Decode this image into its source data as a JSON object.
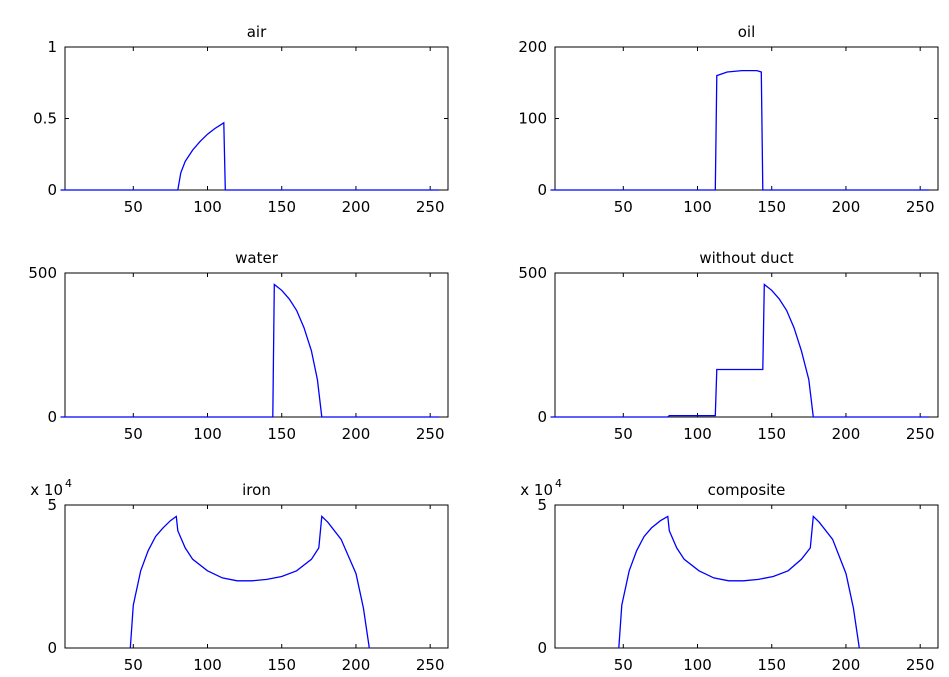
{
  "chart_data": [
    {
      "type": "line",
      "title": "air",
      "color": "#0000ff",
      "x": [
        1,
        80,
        82,
        85,
        90,
        95,
        100,
        105,
        111,
        112,
        256
      ],
      "values": [
        0,
        0,
        0.12,
        0.2,
        0.28,
        0.34,
        0.39,
        0.43,
        0.47,
        0,
        0
      ],
      "xlim": [
        4,
        262
      ],
      "xticks": [
        50,
        100,
        150,
        200,
        250
      ],
      "ylim": [
        0,
        1
      ],
      "yticks": [
        0,
        0.5,
        1
      ]
    },
    {
      "type": "line",
      "title": "oil",
      "color": "#0000ff",
      "x": [
        1,
        112,
        113,
        120,
        130,
        140,
        143,
        144,
        256
      ],
      "values": [
        0,
        0,
        160,
        165,
        167,
        167,
        165,
        0,
        0
      ],
      "xlim": [
        4,
        262
      ],
      "xticks": [
        50,
        100,
        150,
        200,
        250
      ],
      "ylim": [
        0,
        200
      ],
      "yticks": [
        0,
        100,
        200
      ]
    },
    {
      "type": "line",
      "title": "water",
      "color": "#0000ff",
      "x": [
        1,
        144,
        145,
        150,
        155,
        160,
        165,
        170,
        174,
        177,
        256
      ],
      "values": [
        0,
        0,
        460,
        440,
        410,
        370,
        310,
        230,
        130,
        0,
        0
      ],
      "xlim": [
        4,
        262
      ],
      "xticks": [
        50,
        100,
        150,
        200,
        250
      ],
      "ylim": [
        0,
        500
      ],
      "yticks": [
        0,
        500
      ]
    },
    {
      "type": "line",
      "title": "without duct",
      "color": "#0000ff",
      "x": [
        1,
        80,
        81,
        112,
        113,
        144,
        145,
        150,
        155,
        160,
        165,
        170,
        175,
        178,
        256
      ],
      "values": [
        0,
        0,
        5,
        5,
        165,
        165,
        460,
        440,
        410,
        370,
        310,
        230,
        130,
        0,
        0
      ],
      "xlim": [
        4,
        262
      ],
      "xticks": [
        50,
        100,
        150,
        200,
        250
      ],
      "ylim": [
        0,
        500
      ],
      "yticks": [
        0,
        500
      ]
    },
    {
      "type": "line",
      "title": "iron",
      "color": "#0000ff",
      "y_scale_base": "x 10",
      "y_scale_exponent": "4",
      "x": [
        48,
        50,
        55,
        60,
        65,
        70,
        75,
        79,
        80,
        85,
        90,
        100,
        110,
        120,
        130,
        140,
        150,
        160,
        170,
        175,
        177,
        181,
        190,
        200,
        205,
        209
      ],
      "values": [
        0,
        15000,
        27000,
        34000,
        39000,
        42000,
        44500,
        46000,
        41000,
        35000,
        31000,
        27000,
        24500,
        23500,
        23500,
        24000,
        25000,
        27000,
        31000,
        35000,
        46000,
        44000,
        38000,
        26000,
        14000,
        0
      ],
      "xlim": [
        4,
        262
      ],
      "xticks": [
        50,
        100,
        150,
        200,
        250
      ],
      "ylim": [
        0,
        50000
      ],
      "yticks": [
        0,
        {
          "value": 50000,
          "label": "5"
        }
      ]
    },
    {
      "type": "line",
      "title": "composite",
      "color": "#0000ff",
      "y_scale_base": "x 10",
      "y_scale_exponent": "4",
      "x": [
        47,
        49,
        54,
        59,
        64,
        69,
        75,
        80,
        81,
        86,
        91,
        101,
        111,
        121,
        131,
        141,
        151,
        161,
        170,
        176,
        178,
        182,
        191,
        200,
        205,
        209
      ],
      "values": [
        0,
        15000,
        27000,
        34000,
        39000,
        42000,
        44500,
        46000,
        41000,
        35000,
        31000,
        27000,
        24500,
        23500,
        23500,
        24000,
        25000,
        27000,
        31000,
        35000,
        46000,
        44000,
        38000,
        26000,
        14000,
        0
      ],
      "xlim": [
        4,
        262
      ],
      "xticks": [
        50,
        100,
        150,
        200,
        250
      ],
      "ylim": [
        0,
        50000
      ],
      "yticks": [
        0,
        {
          "value": 50000,
          "label": "5"
        }
      ]
    }
  ]
}
